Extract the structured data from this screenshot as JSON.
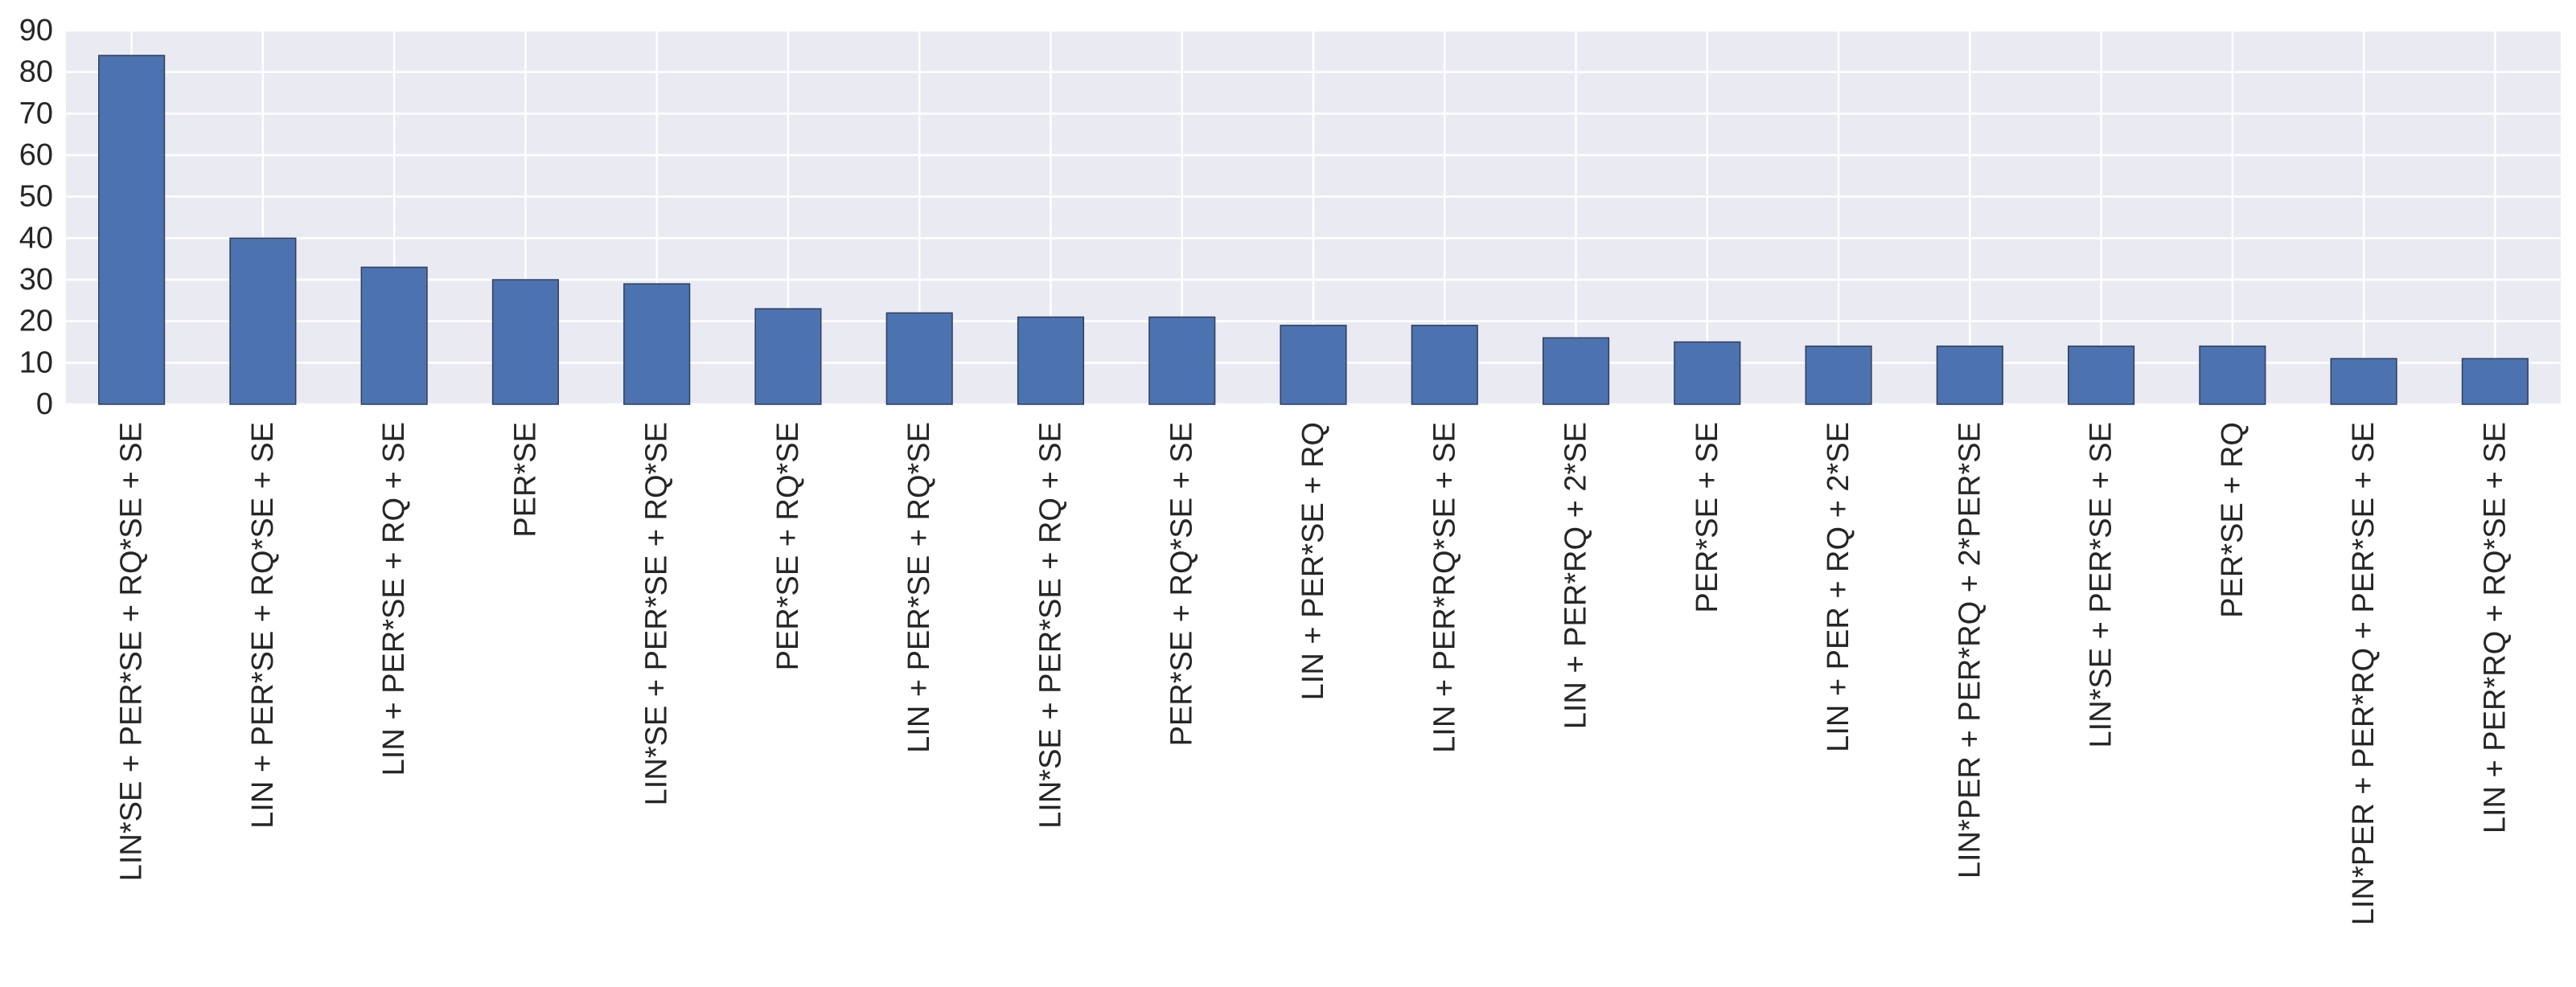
{
  "chart_data": {
    "type": "bar",
    "title": "",
    "xlabel": "",
    "ylabel": "",
    "ylim": [
      0,
      90
    ],
    "yticks": [
      0,
      10,
      20,
      30,
      40,
      50,
      60,
      70,
      80,
      90
    ],
    "grid": true,
    "legend": "none",
    "style": {
      "background": "#eaeaf2",
      "grid_color": "#ffffff",
      "bar_color": "#4c72b0",
      "bar_edge": "#2f3f5c",
      "text_color": "#262626"
    },
    "categories": [
      "LIN*SE + PER*SE + RQ*SE + SE",
      "LIN + PER*SE + RQ*SE + SE",
      "LIN + PER*SE + RQ + SE",
      "PER*SE",
      "LIN*SE + PER*SE + RQ*SE",
      "PER*SE + RQ*SE",
      "LIN + PER*SE + RQ*SE",
      "LIN*SE + PER*SE + RQ + SE",
      "PER*SE + RQ*SE + SE",
      "LIN + PER*SE + RQ",
      "LIN + PER*RQ*SE + SE",
      "LIN + PER*RQ + 2*SE",
      "PER*SE + SE",
      "LIN + PER + RQ + 2*SE",
      "LIN*PER + PER*RQ + 2*PER*SE",
      "LIN*SE + PER*SE + SE",
      "PER*SE + RQ",
      "LIN*PER + PER*RQ + PER*SE + SE",
      "LIN + PER*RQ + RQ*SE + SE"
    ],
    "values": [
      84,
      40,
      33,
      30,
      29,
      23,
      22,
      21,
      21,
      19,
      19,
      16,
      15,
      14,
      14,
      14,
      14,
      11,
      11
    ]
  }
}
